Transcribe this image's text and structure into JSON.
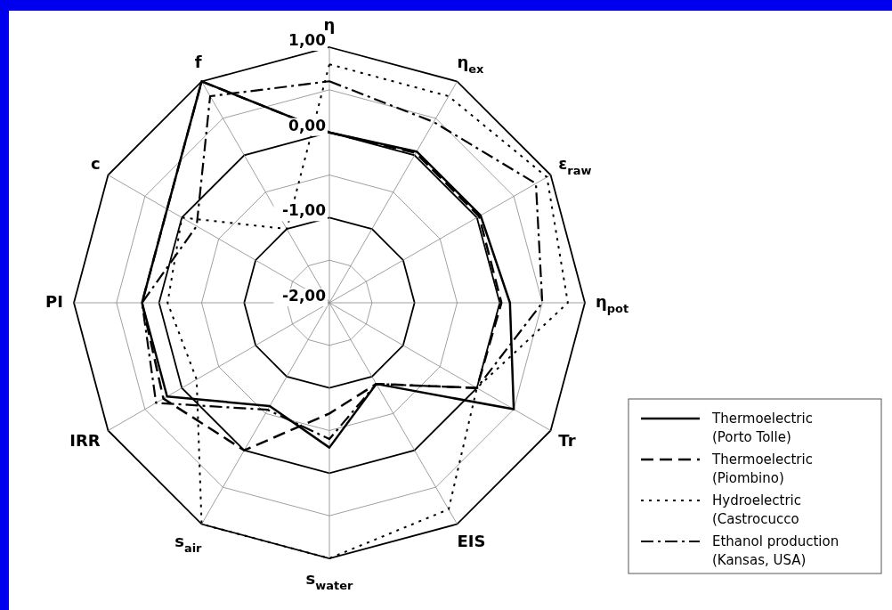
{
  "chart_data": {
    "type": "radar",
    "categories": [
      "η",
      "η$_{ex}$",
      "ε$_{raw}$",
      "η$_{pot}$",
      "Tr",
      "EIS",
      "s$_{water}$",
      "s$_{air}$",
      "IRR",
      "PI",
      "c",
      "f"
    ],
    "ylim": [
      -2,
      1
    ],
    "yticks": [
      {
        "value": 1,
        "label": "1,00"
      },
      {
        "value": 0,
        "label": "0,00"
      },
      {
        "value": -1,
        "label": "-1,00"
      },
      {
        "value": -2,
        "label": "-2,00"
      }
    ],
    "grid": true,
    "legend": "right",
    "marker": "none",
    "series": [
      {
        "name": "Thermoelectric (Porto Tolle)",
        "color": "#000000",
        "line_style": "solid",
        "values": [
          0.0,
          0.05,
          0.05,
          0.12,
          0.5,
          -0.9,
          -0.3,
          -0.6,
          0.2,
          0.2,
          0.2,
          1.0
        ]
      },
      {
        "name": "Thermoelectric (Piombino)",
        "color": "#000000",
        "line_style": "dashed",
        "values": [
          0.0,
          0.03,
          0.03,
          0.02,
          0.0,
          -0.9,
          -0.7,
          0.0,
          0.25,
          0.2,
          0.2,
          1.0
        ]
      },
      {
        "name": "Hydroelectric (Castrocucco",
        "color": "#000000",
        "line_style": "dotted",
        "values": [
          0.8,
          0.8,
          0.95,
          0.8,
          0.0,
          0.8,
          1.0,
          1.0,
          -0.2,
          -0.1,
          0.0,
          -1.0
        ]
      },
      {
        "name": "Ethanol production (Kansas, USA)",
        "color": "#000000",
        "line_style": "dashdot",
        "values": [
          0.6,
          0.45,
          0.8,
          0.5,
          0.0,
          -0.9,
          -0.4,
          -0.55,
          0.35,
          0.2,
          -0.2,
          0.8
        ]
      }
    ]
  }
}
